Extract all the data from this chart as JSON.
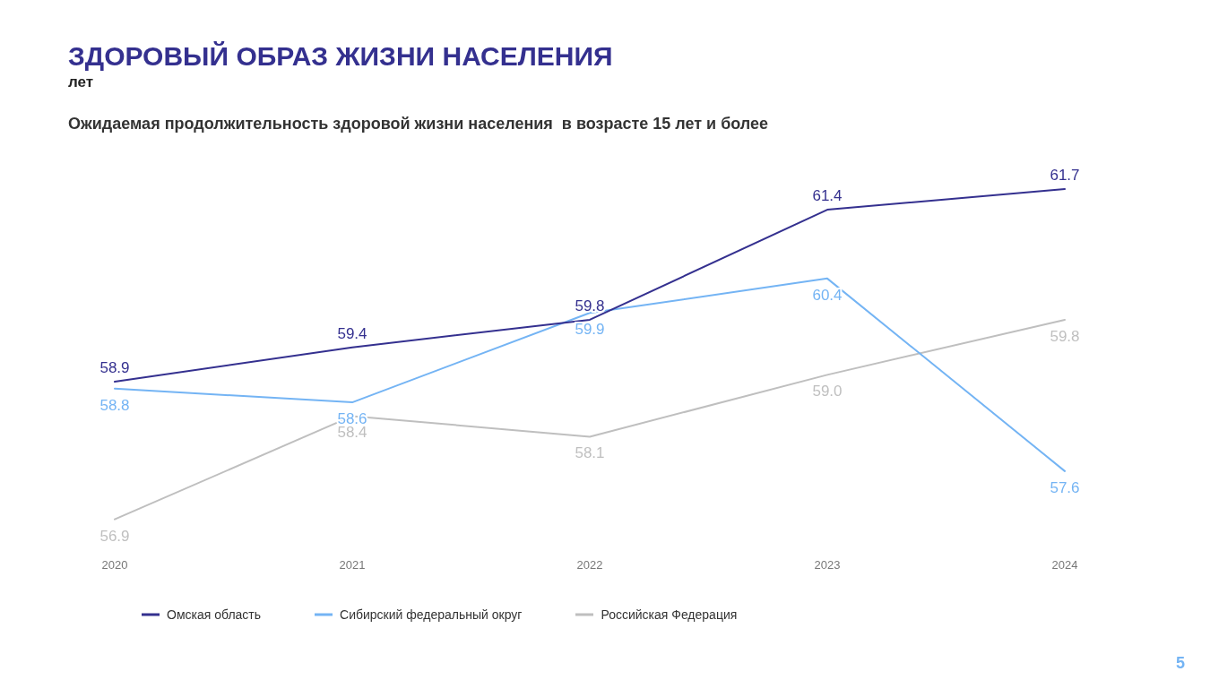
{
  "chart_data": {
    "type": "line",
    "title": "ЗДОРОВЫЙ ОБРАЗ ЖИЗНИ НАСЕЛЕНИЯ",
    "subtitle": "Ожидаемая продолжительность здоровой жизни населения  в возрасте 15 лет и более",
    "categories": [
      "2020",
      "2021",
      "2022",
      "2023",
      "2024"
    ],
    "series": [
      {
        "name": "Омская область",
        "color": "#34308f",
        "values": [
          58.9,
          59.4,
          59.8,
          61.4,
          61.7
        ],
        "value_labels": [
          "58.9",
          "59.4",
          "59.8",
          "61.4",
          "61.7"
        ]
      },
      {
        "name": "Сибирский федеральный округ",
        "color": "#74b4f4",
        "values": [
          58.8,
          58.6,
          59.9,
          60.4,
          57.6
        ],
        "value_labels": [
          "58.8",
          "58.6",
          "59.9",
          "60.4",
          "57.6"
        ]
      },
      {
        "name": "Российская Федерация",
        "color": "#bfbfbf",
        "values": [
          56.9,
          58.4,
          58.1,
          59.0,
          59.8
        ],
        "value_labels": [
          "56.9",
          "58.4",
          "58.1",
          "59.0",
          "59.8"
        ]
      }
    ],
    "legend": "bottom",
    "annotations": [
      "лет",
      "5"
    ]
  }
}
